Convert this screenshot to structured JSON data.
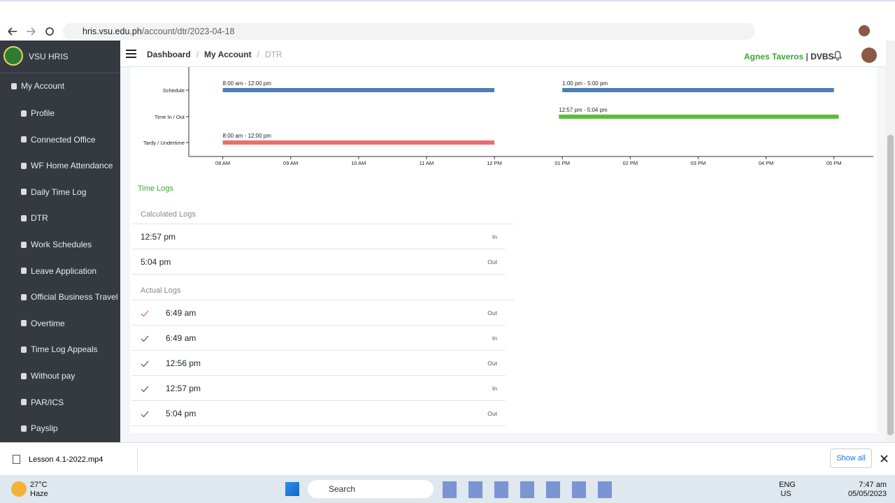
{
  "browser": {
    "url_host": "hris.vsu.edu.ph",
    "url_path": "/account/dtr/2023-04-18"
  },
  "sidebar": {
    "brand": "VSU HRIS",
    "section": "My Account",
    "items": [
      "Profile",
      "Connected Office",
      "WF Home Attendance",
      "Daily Time Log",
      "DTR",
      "Work Schedules",
      "Leave Application",
      "Official Business Travel",
      "Overtime",
      "Time Log Appeals",
      "Without pay",
      "PAR/ICS",
      "Payslip"
    ]
  },
  "topbar": {
    "breadcrumb": [
      "Dashboard",
      "My Account",
      "DTR"
    ],
    "breadcrumb_separator": "/",
    "user": "Agnes Taveros",
    "user_separator": "|",
    "unit": "DVBS"
  },
  "chart_data": {
    "type": "timeline",
    "rows": [
      {
        "label": "Schedule",
        "bars": [
          {
            "start": 8,
            "end": 12,
            "label": "8:00 am - 12:00 pm"
          },
          {
            "start": 13,
            "end": 17,
            "label": "1:00 pm - 5:00 pm"
          }
        ]
      },
      {
        "label": "Time In / Out",
        "bars": [
          {
            "start": 12.95,
            "end": 17.07,
            "label": "12:57 pm - 5:04 pm"
          }
        ]
      },
      {
        "label": "Tardy / Undertime",
        "bars": [
          {
            "start": 8,
            "end": 12,
            "label": "8:00 am - 12:00 pm"
          }
        ]
      }
    ],
    "colors": [
      "#4a7fb5",
      "#5cbf3a",
      "#ee6b6e"
    ],
    "xlim": [
      7.5,
      17.58
    ],
    "xticks": [
      {
        "value": 8,
        "label": "08 AM"
      },
      {
        "value": 9,
        "label": "09 AM"
      },
      {
        "value": 10,
        "label": "10 AM"
      },
      {
        "value": 11,
        "label": "11 AM"
      },
      {
        "value": 12,
        "label": "12 PM"
      },
      {
        "value": 13,
        "label": "01 PM"
      },
      {
        "value": 14,
        "label": "02 PM"
      },
      {
        "value": 15,
        "label": "03 PM"
      },
      {
        "value": 16,
        "label": "04 PM"
      },
      {
        "value": 17,
        "label": "05 PM"
      }
    ]
  },
  "time_logs": {
    "title": "Time Logs",
    "calculated": {
      "title": "Calculated Logs",
      "rows": [
        {
          "time": "12:57 pm",
          "type": "In"
        },
        {
          "time": "5:04 pm",
          "type": "Out"
        }
      ]
    },
    "actual": {
      "title": "Actual Logs",
      "rows": [
        {
          "time": "6:49 am",
          "type": "Out"
        },
        {
          "time": "6:49 am",
          "type": "In"
        },
        {
          "time": "12:56 pm",
          "type": "Out"
        },
        {
          "time": "12:57 pm",
          "type": "In"
        },
        {
          "time": "5:04 pm",
          "type": "Out"
        }
      ]
    }
  },
  "downloads": {
    "file": "Lesson 4.1-2022.mp4",
    "show_all": "Show all"
  },
  "taskbar": {
    "temperature": "27°C",
    "weather": "Haze",
    "search": "Search",
    "language": "ENG",
    "region": "US",
    "time": "7:47 am",
    "date": "05/05/2023"
  }
}
